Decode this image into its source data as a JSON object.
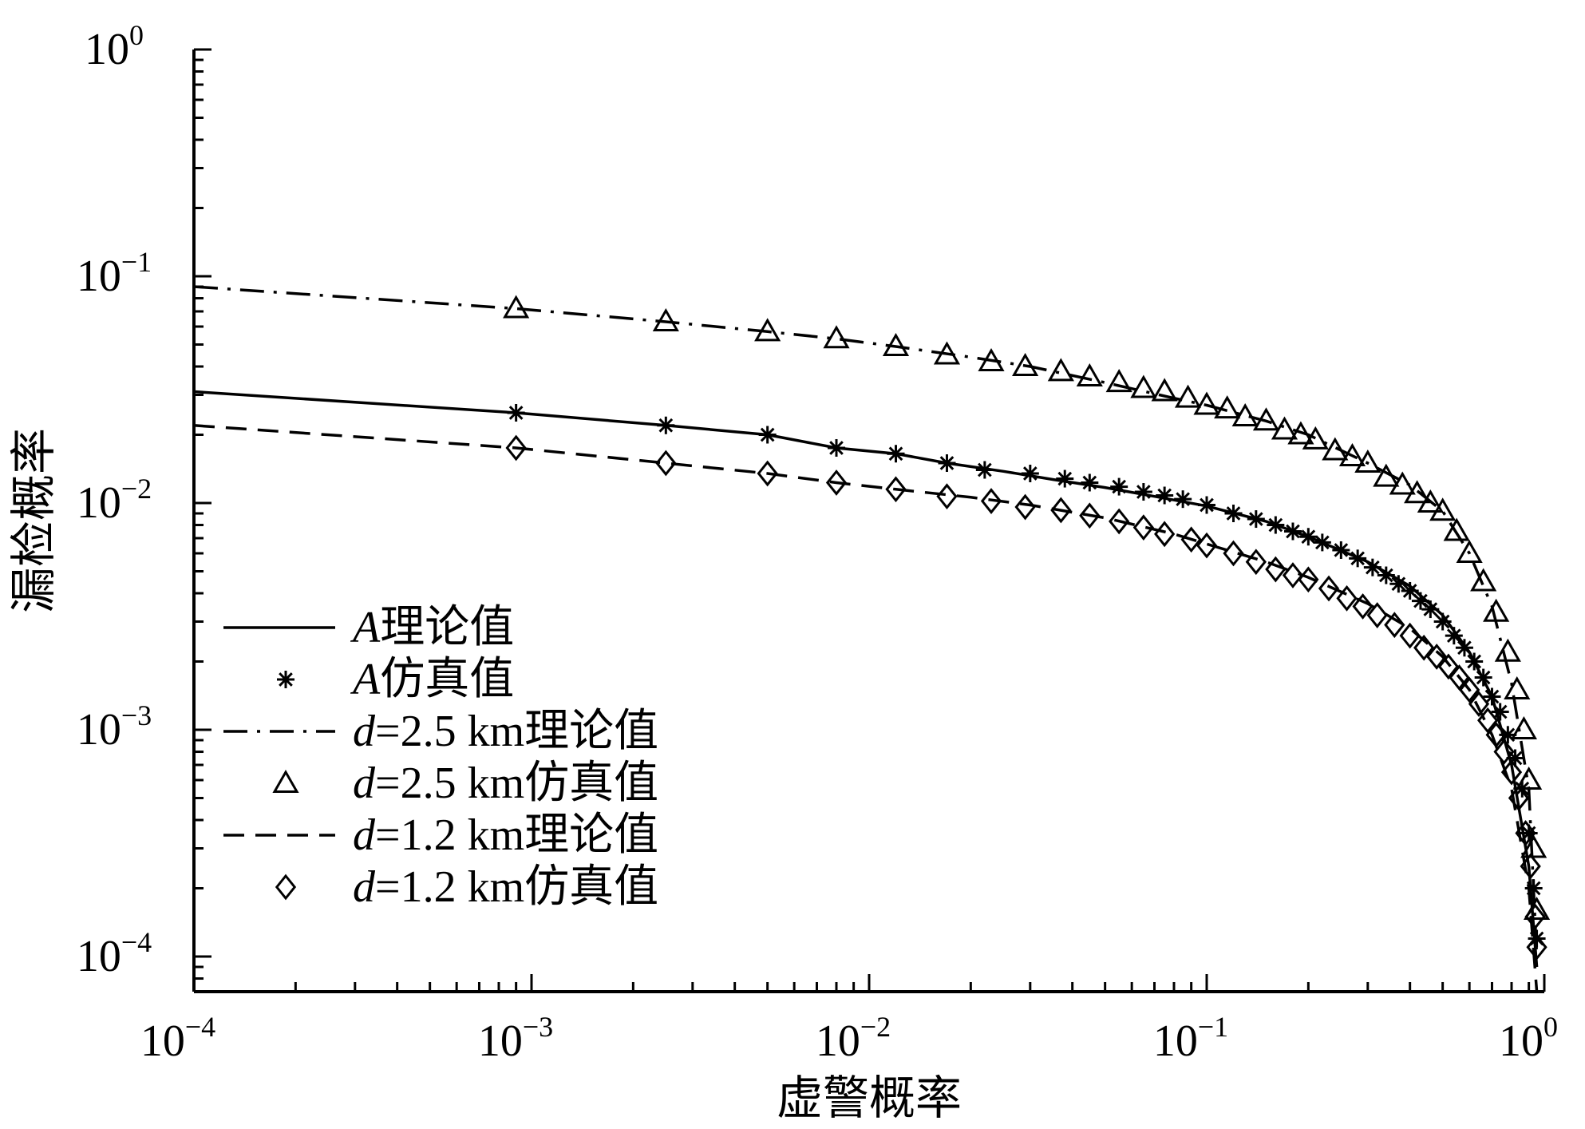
{
  "chart_data": {
    "type": "line",
    "xscale": "log",
    "yscale": "log",
    "xlim": [
      0.0001,
      1
    ],
    "ylim": [
      7e-05,
      1
    ],
    "xlabel": "虚警概率",
    "ylabel": "漏检概率",
    "x_ticks": [
      {
        "value": 0.0001,
        "base": "10",
        "exp": "−4"
      },
      {
        "value": 0.001,
        "base": "10",
        "exp": "−3"
      },
      {
        "value": 0.01,
        "base": "10",
        "exp": "−2"
      },
      {
        "value": 0.1,
        "base": "10",
        "exp": "−1"
      },
      {
        "value": 1,
        "base": "10",
        "exp": "0"
      }
    ],
    "y_ticks": [
      {
        "value": 0.0001,
        "base": "10",
        "exp": "−4"
      },
      {
        "value": 0.001,
        "base": "10",
        "exp": "−3"
      },
      {
        "value": 0.01,
        "base": "10",
        "exp": "−2"
      },
      {
        "value": 0.1,
        "base": "10",
        "exp": "−1"
      },
      {
        "value": 1,
        "base": "10",
        "exp": "0"
      }
    ],
    "grid": false,
    "legend_position": "bottom-left",
    "series": [
      {
        "name_prefix": "A",
        "name": "理论值",
        "style": "solid",
        "marker": "none",
        "x": [
          0.0001,
          0.0009,
          0.0025,
          0.005,
          0.008,
          0.012,
          0.017,
          0.025,
          0.035,
          0.05,
          0.07,
          0.1,
          0.15,
          0.2,
          0.3,
          0.4,
          0.5,
          0.6,
          0.7,
          0.8,
          0.9,
          0.95
        ],
        "y": [
          0.031,
          0.025,
          0.022,
          0.02,
          0.0175,
          0.0165,
          0.015,
          0.0138,
          0.0127,
          0.0117,
          0.0107,
          0.0097,
          0.0083,
          0.0071,
          0.0055,
          0.0043,
          0.0032,
          0.0022,
          0.0014,
          0.0007,
          0.00025,
          9e-05
        ]
      },
      {
        "name_prefix": "A",
        "name": "仿真值",
        "style": "none",
        "marker": "star",
        "x": [
          0.0009,
          0.0025,
          0.005,
          0.008,
          0.012,
          0.017,
          0.022,
          0.03,
          0.038,
          0.045,
          0.055,
          0.065,
          0.075,
          0.085,
          0.1,
          0.12,
          0.14,
          0.16,
          0.18,
          0.2,
          0.22,
          0.25,
          0.28,
          0.31,
          0.34,
          0.37,
          0.4,
          0.43,
          0.46,
          0.5,
          0.54,
          0.58,
          0.62,
          0.66,
          0.7,
          0.74,
          0.78,
          0.82,
          0.86,
          0.9,
          0.93,
          0.95
        ],
        "y": [
          0.025,
          0.022,
          0.02,
          0.0175,
          0.0165,
          0.015,
          0.014,
          0.0135,
          0.0128,
          0.0123,
          0.0118,
          0.0112,
          0.0108,
          0.0104,
          0.0098,
          0.009,
          0.0085,
          0.008,
          0.0075,
          0.0071,
          0.0067,
          0.0062,
          0.0057,
          0.0052,
          0.0048,
          0.0044,
          0.0041,
          0.0037,
          0.0034,
          0.003,
          0.0026,
          0.0023,
          0.002,
          0.0017,
          0.0014,
          0.0012,
          0.00095,
          0.00075,
          0.00055,
          0.00035,
          0.0002,
          0.00012
        ]
      },
      {
        "name_prefix": "d",
        "name": "=2.5 km理论值",
        "style": "dashdot",
        "marker": "none",
        "x": [
          0.0001,
          0.0009,
          0.0025,
          0.005,
          0.008,
          0.012,
          0.02,
          0.03,
          0.05,
          0.08,
          0.1,
          0.15,
          0.2,
          0.3,
          0.4,
          0.5,
          0.6,
          0.7,
          0.8,
          0.9,
          0.95
        ],
        "y": [
          0.09,
          0.072,
          0.063,
          0.057,
          0.053,
          0.049,
          0.044,
          0.04,
          0.034,
          0.029,
          0.027,
          0.023,
          0.02,
          0.015,
          0.012,
          0.0092,
          0.006,
          0.0035,
          0.0016,
          0.00055,
          0.0001
        ]
      },
      {
        "name_prefix": "d",
        "name": "=2.5 km仿真值",
        "style": "none",
        "marker": "triangle",
        "x": [
          0.0009,
          0.0025,
          0.005,
          0.008,
          0.012,
          0.017,
          0.023,
          0.029,
          0.037,
          0.045,
          0.055,
          0.065,
          0.075,
          0.088,
          0.1,
          0.115,
          0.13,
          0.15,
          0.17,
          0.19,
          0.21,
          0.24,
          0.27,
          0.3,
          0.34,
          0.38,
          0.42,
          0.46,
          0.5,
          0.55,
          0.6,
          0.66,
          0.72,
          0.78,
          0.83,
          0.87,
          0.9,
          0.93,
          0.95
        ],
        "y": [
          0.072,
          0.063,
          0.057,
          0.053,
          0.049,
          0.045,
          0.042,
          0.04,
          0.038,
          0.036,
          0.034,
          0.032,
          0.031,
          0.029,
          0.027,
          0.026,
          0.024,
          0.023,
          0.021,
          0.02,
          0.019,
          0.017,
          0.016,
          0.015,
          0.013,
          0.012,
          0.011,
          0.01,
          0.0092,
          0.0075,
          0.006,
          0.0045,
          0.0033,
          0.0022,
          0.0015,
          0.001,
          0.0006,
          0.0003,
          0.00016
        ]
      },
      {
        "name_prefix": "d",
        "name": "=1.2 km理论值",
        "style": "dashed",
        "marker": "none",
        "x": [
          0.0001,
          0.0009,
          0.0025,
          0.005,
          0.008,
          0.012,
          0.02,
          0.03,
          0.05,
          0.08,
          0.1,
          0.15,
          0.2,
          0.3,
          0.4,
          0.5,
          0.6,
          0.7,
          0.8,
          0.9,
          0.95
        ],
        "y": [
          0.022,
          0.0175,
          0.015,
          0.0135,
          0.0123,
          0.0115,
          0.0106,
          0.0098,
          0.0086,
          0.0073,
          0.0066,
          0.0055,
          0.0047,
          0.0036,
          0.0028,
          0.0021,
          0.0015,
          0.00095,
          0.00055,
          0.0002,
          7e-05
        ]
      },
      {
        "name_prefix": "d",
        "name": "=1.2 km仿真值",
        "style": "none",
        "marker": "diamond",
        "x": [
          0.0009,
          0.0025,
          0.005,
          0.008,
          0.012,
          0.017,
          0.023,
          0.029,
          0.037,
          0.045,
          0.055,
          0.065,
          0.075,
          0.09,
          0.1,
          0.12,
          0.14,
          0.16,
          0.18,
          0.2,
          0.23,
          0.26,
          0.29,
          0.32,
          0.36,
          0.4,
          0.44,
          0.48,
          0.52,
          0.56,
          0.6,
          0.64,
          0.68,
          0.72,
          0.76,
          0.8,
          0.84,
          0.88,
          0.91,
          0.94,
          0.95
        ],
        "y": [
          0.0175,
          0.015,
          0.0135,
          0.0123,
          0.0115,
          0.0107,
          0.0102,
          0.0096,
          0.0093,
          0.0088,
          0.0083,
          0.0078,
          0.0073,
          0.0069,
          0.0065,
          0.006,
          0.0055,
          0.0051,
          0.0048,
          0.0046,
          0.0042,
          0.0038,
          0.0035,
          0.0032,
          0.0029,
          0.0026,
          0.0023,
          0.0021,
          0.0019,
          0.0017,
          0.0015,
          0.0013,
          0.0011,
          0.00095,
          0.0008,
          0.00065,
          0.0005,
          0.00035,
          0.00025,
          0.00015,
          0.00011
        ]
      }
    ]
  }
}
